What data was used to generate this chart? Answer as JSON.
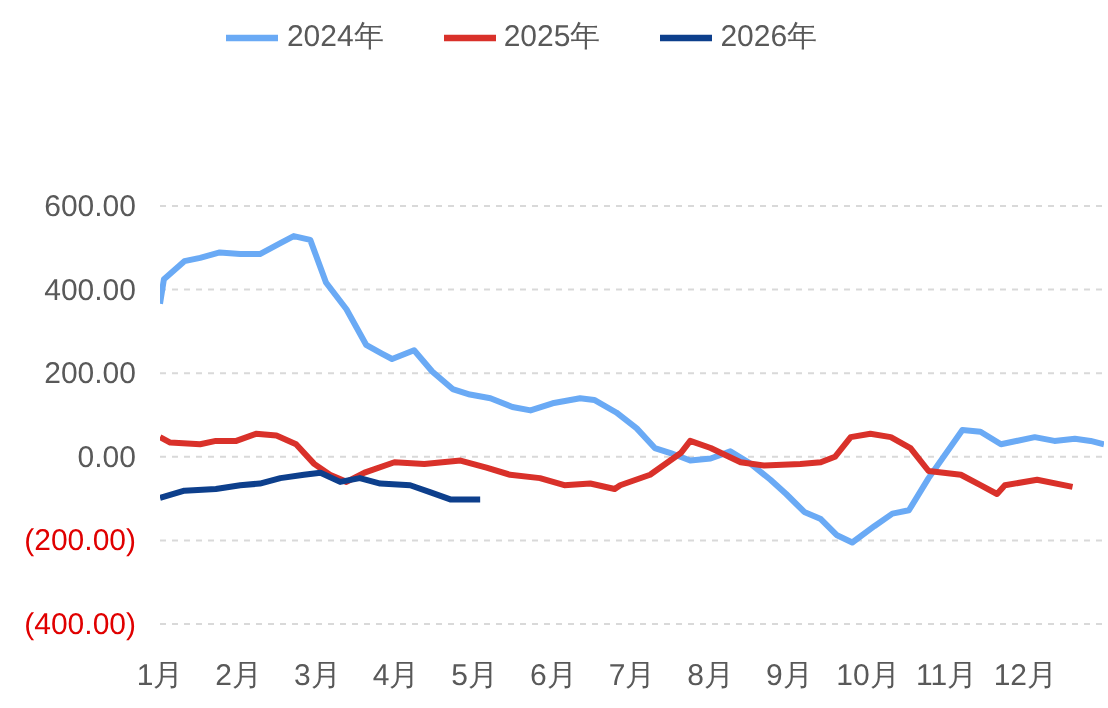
{
  "chart_data": {
    "type": "line",
    "xlim": [
      1,
      13
    ],
    "xticks": [
      {
        "value": 1,
        "label": "1月"
      },
      {
        "value": 2,
        "label": "2月"
      },
      {
        "value": 3,
        "label": "3月"
      },
      {
        "value": 4,
        "label": "4月"
      },
      {
        "value": 5,
        "label": "5月"
      },
      {
        "value": 6,
        "label": "6月"
      },
      {
        "value": 7,
        "label": "7月"
      },
      {
        "value": 8,
        "label": "8月"
      },
      {
        "value": 9,
        "label": "9月"
      },
      {
        "value": 10,
        "label": "10月"
      },
      {
        "value": 11,
        "label": "11月"
      },
      {
        "value": 12,
        "label": "12月"
      }
    ],
    "ylim": [
      -400,
      600
    ],
    "yticks": [
      {
        "value": -400,
        "label": "(400.00)"
      },
      {
        "value": -200,
        "label": "(200.00)"
      },
      {
        "value": 0,
        "label": "0.00"
      },
      {
        "value": 200,
        "label": "200.00"
      },
      {
        "value": 400,
        "label": "400.00"
      },
      {
        "value": 600,
        "label": "600.00"
      }
    ],
    "grid": "y",
    "legend": "top",
    "marker": "none",
    "line_style": "solid",
    "series": [
      {
        "name": "2024年",
        "color": "#6aaaf5",
        "x": [
          1.0,
          1.05,
          1.31,
          1.51,
          1.76,
          2.02,
          2.27,
          2.53,
          2.7,
          2.91,
          3.11,
          3.37,
          3.62,
          3.82,
          3.95,
          4.23,
          4.46,
          4.72,
          4.94,
          5.2,
          5.48,
          5.71,
          5.99,
          6.34,
          6.52,
          6.8,
          7.06,
          7.29,
          7.49,
          7.74,
          8.0,
          8.25,
          8.51,
          8.76,
          8.96,
          9.19,
          9.4,
          9.6,
          9.8,
          10.08,
          10.31,
          10.52,
          10.77,
          11.2,
          11.43,
          11.69,
          12.12,
          12.37,
          12.63,
          12.83,
          13.0
        ],
        "values": [
          366,
          425,
          468,
          476,
          489,
          485,
          485,
          511,
          528,
          519,
          417,
          353,
          268,
          247,
          234,
          255,
          204,
          162,
          149,
          140,
          119,
          111,
          128,
          140,
          136,
          106,
          68,
          21,
          9,
          -9,
          -4,
          13,
          -17,
          -55,
          -89,
          -132,
          -149,
          -187,
          -205,
          -166,
          -136,
          -128,
          -51,
          64,
          60,
          30,
          47,
          38,
          43,
          38,
          30
        ]
      },
      {
        "name": "2025年",
        "color": "#d9312a",
        "x": [
          1.0,
          1.13,
          1.51,
          1.71,
          1.97,
          2.22,
          2.48,
          2.73,
          2.96,
          3.16,
          3.37,
          3.6,
          3.98,
          4.36,
          4.82,
          5.15,
          5.45,
          5.83,
          6.14,
          6.47,
          6.78,
          6.85,
          7.23,
          7.62,
          7.74,
          8.0,
          8.38,
          8.68,
          9.14,
          9.4,
          9.58,
          9.78,
          10.03,
          10.29,
          10.54,
          10.77,
          11.18,
          11.43,
          11.64,
          11.74,
          12.15,
          12.6
        ],
        "values": [
          47,
          34,
          30,
          38,
          38,
          55,
          51,
          30,
          -17,
          -43,
          -60,
          -38,
          -13,
          -17,
          -9,
          -26,
          -43,
          -51,
          -68,
          -64,
          -77,
          -68,
          -43,
          9,
          38,
          21,
          -13,
          -21,
          -17,
          -13,
          0,
          47,
          55,
          47,
          21,
          -34,
          -43,
          -68,
          -89,
          -68,
          -55,
          -72
        ]
      },
      {
        "name": "2026年",
        "color": "#0d3f8c",
        "x": [
          1.0,
          1.31,
          1.71,
          2.02,
          2.27,
          2.53,
          2.83,
          3.04,
          3.29,
          3.54,
          3.8,
          4.18,
          4.44,
          4.69,
          5.07
        ],
        "values": [
          -98,
          -81,
          -77,
          -68,
          -64,
          -51,
          -43,
          -38,
          -60,
          -51,
          -64,
          -68,
          -85,
          -102,
          -102
        ]
      }
    ]
  }
}
